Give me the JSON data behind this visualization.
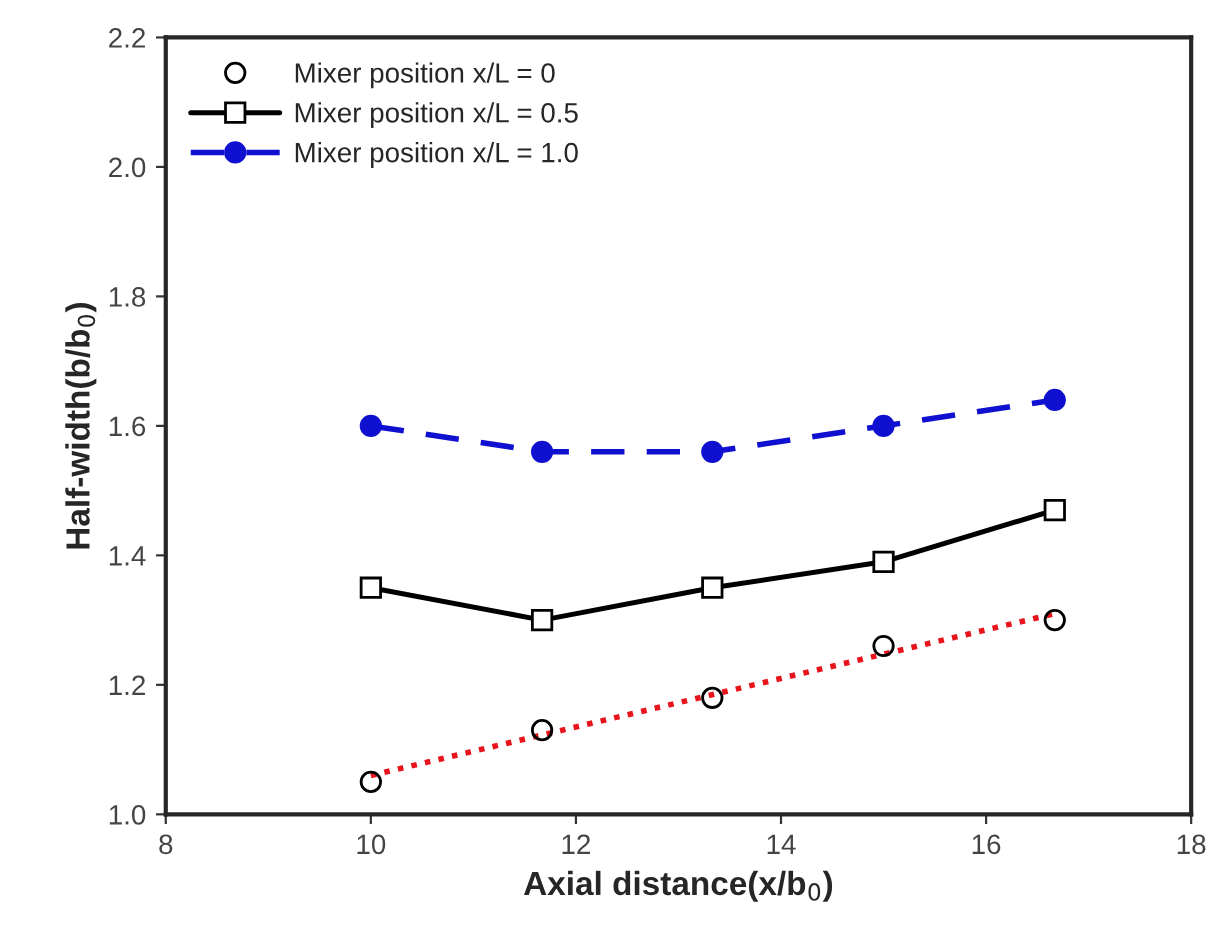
{
  "chart_data": {
    "type": "line",
    "xlabel": "Axial distance(x/b$_{0}$)",
    "ylabel": "Half-width(b/b$_{0}$)",
    "xlim": [
      8,
      18
    ],
    "xticks": [
      8,
      10,
      12,
      14,
      16,
      18
    ],
    "ylim": [
      1.0,
      2.2
    ],
    "yticks": [
      {
        "value": 1.0,
        "label": "1.0"
      },
      1.2,
      1.4,
      1.6,
      1.8,
      {
        "value": 2.0,
        "label": "2.0"
      },
      2.2
    ],
    "grid": false,
    "legend": "top left",
    "series": [
      {
        "name": "Mixer position x/L = 0",
        "type": "scatter",
        "marker": "circle",
        "color": "#000000",
        "x": [
          10,
          11.67,
          13.33,
          15,
          16.67
        ],
        "values": [
          1.05,
          1.13,
          1.18,
          1.26,
          1.3
        ]
      },
      {
        "type": "line",
        "marker": "none",
        "line_style": "dotted",
        "color": "#e8141c",
        "x": [
          10,
          16.67
        ],
        "values": [
          1.06,
          1.31
        ]
      },
      {
        "name": "Mixer position x/L = 0.5",
        "marker": "square",
        "line_style": "solid",
        "color": "#000000",
        "x": [
          10,
          11.67,
          13.33,
          15,
          16.67
        ],
        "values": [
          1.35,
          1.3,
          1.35,
          1.39,
          1.47
        ]
      },
      {
        "name": "Mixer position x/L = 1.0",
        "marker": "circle",
        "line_style": "dashed",
        "color": "#1010d0",
        "x": [
          10,
          11.67,
          13.33,
          15,
          16.67
        ],
        "values": [
          1.6,
          1.56,
          1.56,
          1.6,
          1.64
        ]
      }
    ]
  }
}
